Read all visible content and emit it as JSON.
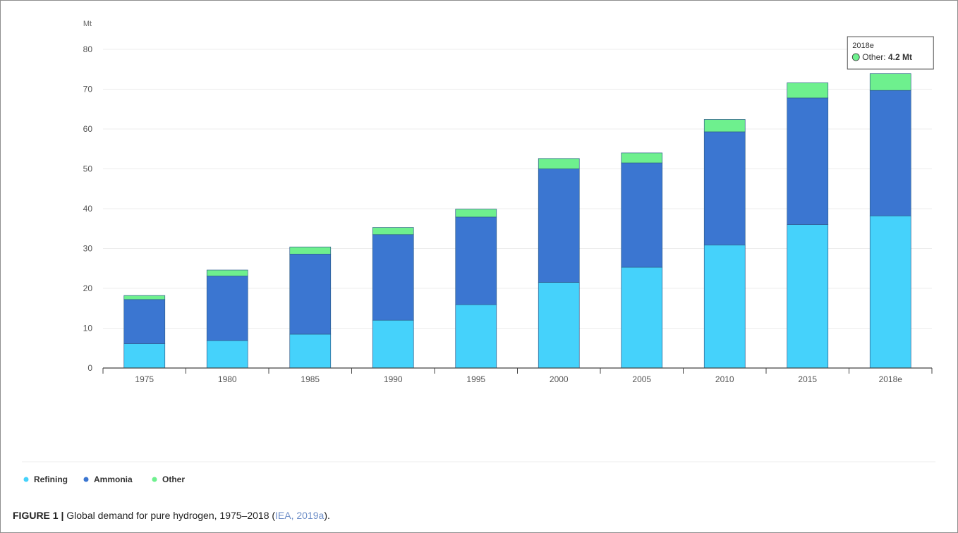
{
  "chart_data": {
    "type": "bar",
    "stacked": true,
    "unit": "Mt",
    "categories": [
      "1975",
      "1980",
      "1985",
      "1990",
      "1995",
      "2000",
      "2005",
      "2010",
      "2015",
      "2018e"
    ],
    "series": [
      {
        "name": "Refining",
        "color": "#45d2fb",
        "values": [
          6.1,
          6.9,
          8.5,
          12.0,
          15.9,
          21.5,
          25.3,
          30.9,
          36.0,
          38.2
        ]
      },
      {
        "name": "Ammonia",
        "color": "#3b76d1",
        "values": [
          11.1,
          16.2,
          20.1,
          21.5,
          22.0,
          28.5,
          26.2,
          28.4,
          31.8,
          31.5
        ]
      },
      {
        "name": "Other",
        "color": "#6ef08e",
        "values": [
          1.0,
          1.5,
          1.8,
          1.8,
          2.0,
          2.6,
          2.5,
          3.1,
          3.8,
          4.2
        ]
      }
    ],
    "ylim": [
      0,
      80
    ],
    "yticks": [
      0,
      10,
      20,
      30,
      40,
      50,
      60,
      70,
      80
    ],
    "grid": true,
    "legend_position": "bottom-left",
    "tooltip": {
      "category": "2018e",
      "title": "2018e",
      "series_label": "Other: ",
      "value_label": "4.2 Mt"
    }
  },
  "caption": {
    "label": "FIGURE 1 |",
    "text": " Global demand for pure hydrogen, 1975–2018 (",
    "citation": "IEA, 2019a",
    "end": ")."
  }
}
